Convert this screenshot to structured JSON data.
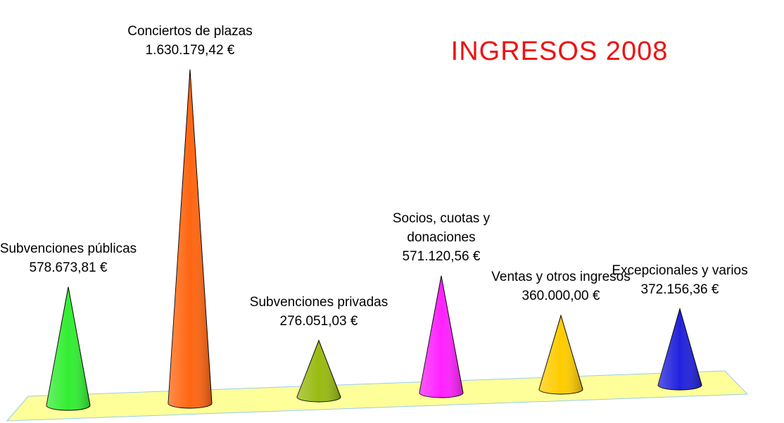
{
  "chart_data": {
    "type": "cone",
    "title": "INGRESOS 2008",
    "categories": [
      "Subvenciones públicas",
      "Conciertos de plazas",
      "Subvenciones privadas",
      "Socios, cuotas y donaciones",
      "Ventas y otros ingresos",
      "Excepcionales y varios"
    ],
    "values": [
      578673.81,
      1630179.42,
      276051.03,
      571120.56,
      360000.0,
      372156.36
    ],
    "value_labels": [
      "578.673,81 €",
      "1.630.179,42 €",
      "276.051,03 €",
      "571.120,56 €",
      "360.000,00 €",
      "372.156,36 €"
    ],
    "colors": [
      "#33ee33",
      "#ff6611",
      "#99bb11",
      "#ff22ff",
      "#ffcc00",
      "#2222dd"
    ]
  }
}
